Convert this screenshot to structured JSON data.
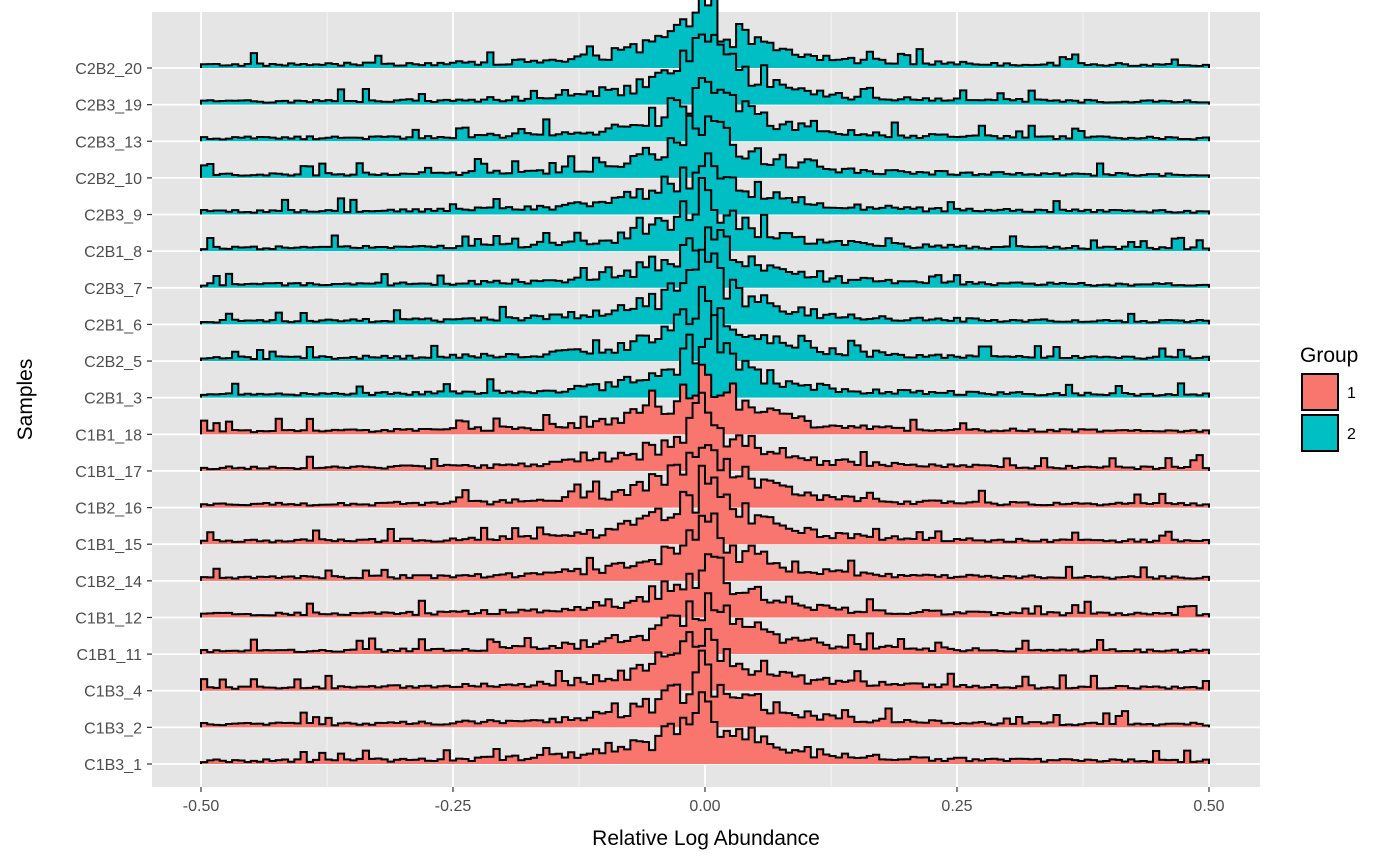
{
  "chart_data": {
    "type": "area",
    "subtype": "ridgeline-histogram",
    "xlabel": "Relative Log Abundance",
    "ylabel": "Samples",
    "xlim": [
      -0.55,
      0.55
    ],
    "x_ticks": [
      -0.5,
      -0.25,
      0.0,
      0.25,
      0.5
    ],
    "x_tick_labels": [
      "-0.50",
      "-0.25",
      "0.00",
      "0.25",
      "0.50"
    ],
    "grid": true,
    "panel_background": "#e5e5e5",
    "grid_color": "#ffffff",
    "outline_color": "#000000",
    "legend": {
      "title": "Group",
      "placement": "right",
      "entries": [
        {
          "label": "1",
          "color": "#f8766d"
        },
        {
          "label": "2",
          "color": "#00bfc4"
        }
      ]
    },
    "samples_top_to_bottom": [
      {
        "name": "C2B2_20",
        "group": "2"
      },
      {
        "name": "C2B3_19",
        "group": "2"
      },
      {
        "name": "C2B3_13",
        "group": "2"
      },
      {
        "name": "C2B2_10",
        "group": "2"
      },
      {
        "name": "C2B3_9",
        "group": "2"
      },
      {
        "name": "C2B1_8",
        "group": "2"
      },
      {
        "name": "C2B3_7",
        "group": "2"
      },
      {
        "name": "C2B1_6",
        "group": "2"
      },
      {
        "name": "C2B2_5",
        "group": "2"
      },
      {
        "name": "C2B1_3",
        "group": "2"
      },
      {
        "name": "C1B1_18",
        "group": "1"
      },
      {
        "name": "C1B1_17",
        "group": "1"
      },
      {
        "name": "C1B2_16",
        "group": "1"
      },
      {
        "name": "C1B1_15",
        "group": "1"
      },
      {
        "name": "C1B2_14",
        "group": "1"
      },
      {
        "name": "C1B1_12",
        "group": "1"
      },
      {
        "name": "C1B1_11",
        "group": "1"
      },
      {
        "name": "C1B3_4",
        "group": "1"
      },
      {
        "name": "C1B3_2",
        "group": "1"
      },
      {
        "name": "C1B3_1",
        "group": "1"
      }
    ],
    "bin_range": [
      -0.5,
      0.5
    ],
    "bin_count": 162,
    "peak_x": 0.0,
    "distribution_note": "sharp peak at 0.00 with long low tails"
  }
}
